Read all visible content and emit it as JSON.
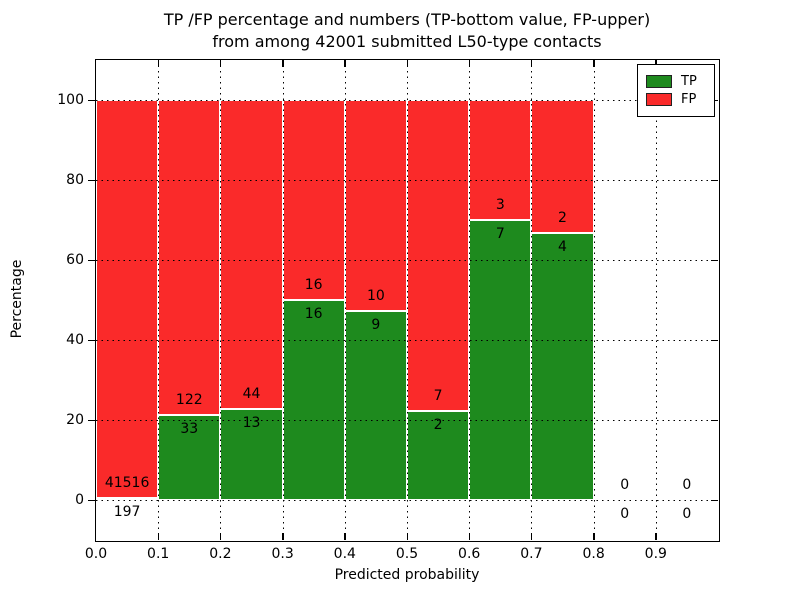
{
  "title": {
    "line1": "TP /FP percentage and numbers (TP-bottom value, FP-upper)",
    "line2": "from among 42001 submitted L50-type contacts"
  },
  "axes": {
    "ylabel": "Percentage",
    "xlabel": "Predicted probability",
    "yticks": [
      0,
      20,
      40,
      60,
      80,
      100
    ],
    "xtick_labels": [
      "0.0",
      "0.1",
      "0.2",
      "0.3",
      "0.4",
      "0.5",
      "0.6",
      "0.7",
      "0.8",
      "0.9"
    ],
    "ylim": [
      -10,
      110
    ],
    "xlim": [
      0.0,
      1.0
    ]
  },
  "legend": {
    "position": "upper right",
    "items": [
      {
        "label": "TP",
        "color": "#1e8a1e"
      },
      {
        "label": "FP",
        "color": "#fa2a2a"
      }
    ]
  },
  "chart_data": {
    "type": "bar",
    "stacked": true,
    "normalized": "each bin scaled to 100%",
    "title": "TP /FP percentage and numbers (TP-bottom value, FP-upper) from among 42001 submitted L50-type contacts",
    "xlabel": "Predicted probability",
    "ylabel": "Percentage",
    "bin_width": 0.1,
    "bin_starts": [
      0.0,
      0.1,
      0.2,
      0.3,
      0.4,
      0.5,
      0.6,
      0.7,
      0.8,
      0.9
    ],
    "series": [
      {
        "name": "TP",
        "color": "#1e8a1e",
        "counts": [
          197,
          33,
          13,
          16,
          9,
          2,
          7,
          4,
          0,
          0
        ]
      },
      {
        "name": "FP",
        "color": "#fa2a2a",
        "counts": [
          41516,
          122,
          44,
          16,
          10,
          7,
          3,
          2,
          0,
          0
        ]
      }
    ],
    "tp_percent": [
      0.47,
      21.29,
      22.81,
      50.0,
      47.37,
      22.22,
      70.0,
      66.67,
      0.0,
      0.0
    ],
    "ylim": [
      -10,
      110
    ],
    "xlim": [
      0.0,
      1.0
    ],
    "grid": "dotted black, both axes, drawn over bars",
    "legend_position": "upper right"
  }
}
